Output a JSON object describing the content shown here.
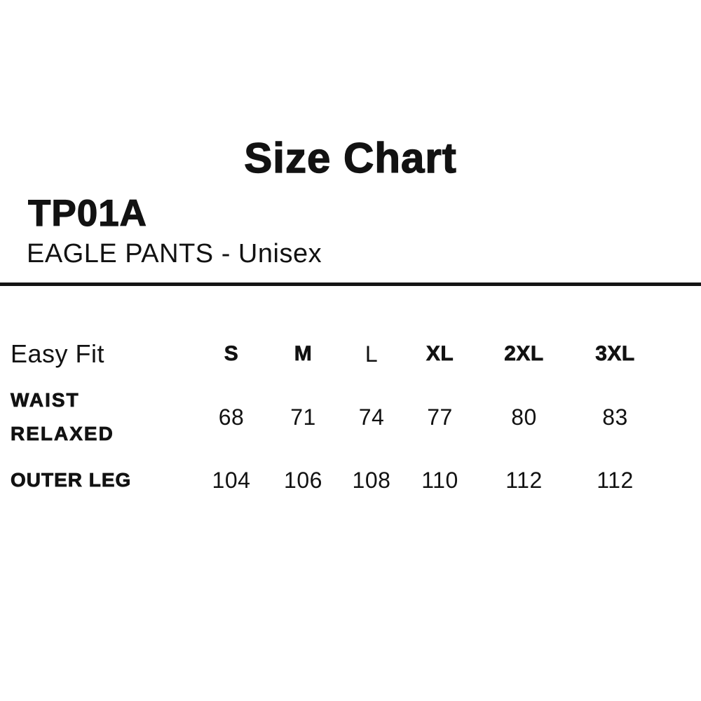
{
  "page": {
    "title": "Size Chart",
    "background_color": "#ffffff",
    "text_color": "#121212",
    "divider_color": "#141414"
  },
  "product": {
    "code": "TP01A",
    "name": "EAGLE PANTS - Unisex"
  },
  "table": {
    "fit_label": "Easy Fit",
    "sizes": [
      "S",
      "M",
      "L",
      "XL",
      "2XL",
      "3XL"
    ],
    "rows": [
      {
        "label": "WAIST RELAXED",
        "values": [
          "68",
          "71",
          "74",
          "77",
          "80",
          "83"
        ]
      },
      {
        "label": "OUTER LEG",
        "values": [
          "104",
          "106",
          "108",
          "110",
          "112",
          "112"
        ]
      }
    ]
  },
  "chart_data": {
    "type": "table",
    "title": "Size Chart",
    "product_code": "TP01A",
    "product_name": "EAGLE PANTS - Unisex",
    "fit": "Easy Fit",
    "columns": [
      "S",
      "M",
      "L",
      "XL",
      "2XL",
      "3XL"
    ],
    "rows": [
      {
        "label": "WAIST RELAXED",
        "values": [
          68,
          71,
          74,
          77,
          80,
          83
        ]
      },
      {
        "label": "OUTER LEG",
        "values": [
          104,
          106,
          108,
          110,
          112,
          112
        ]
      }
    ],
    "layout": {
      "grid": false,
      "borders": "single horizontal rule above table"
    }
  }
}
